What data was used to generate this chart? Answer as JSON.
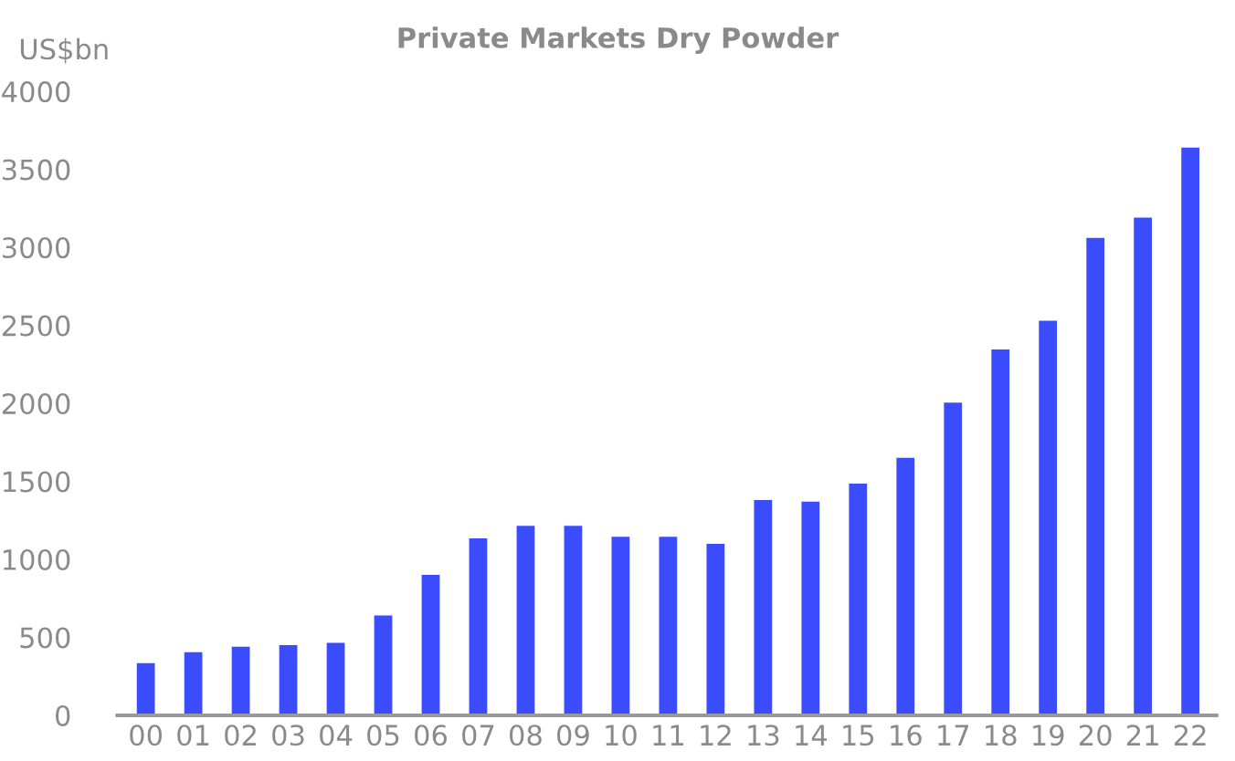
{
  "chart_data": {
    "type": "bar",
    "title": "Private Markets Dry Powder",
    "ylabel": "US$bn",
    "categories": [
      "00",
      "01",
      "02",
      "03",
      "04",
      "05",
      "06",
      "07",
      "08",
      "09",
      "10",
      "11",
      "12",
      "13",
      "14",
      "15",
      "16",
      "17",
      "18",
      "19",
      "20",
      "21",
      "22"
    ],
    "values": [
      335,
      405,
      440,
      450,
      465,
      640,
      900,
      1135,
      1215,
      1215,
      1145,
      1145,
      1100,
      1380,
      1370,
      1485,
      1650,
      2005,
      2345,
      2530,
      3060,
      3190,
      3640
    ],
    "color": "#3b4cfc",
    "ylim": [
      0,
      4000
    ],
    "yticks": [
      0,
      500,
      1000,
      1500,
      2000,
      2500,
      3000,
      3500,
      4000
    ],
    "grid": false,
    "legend": false
  }
}
